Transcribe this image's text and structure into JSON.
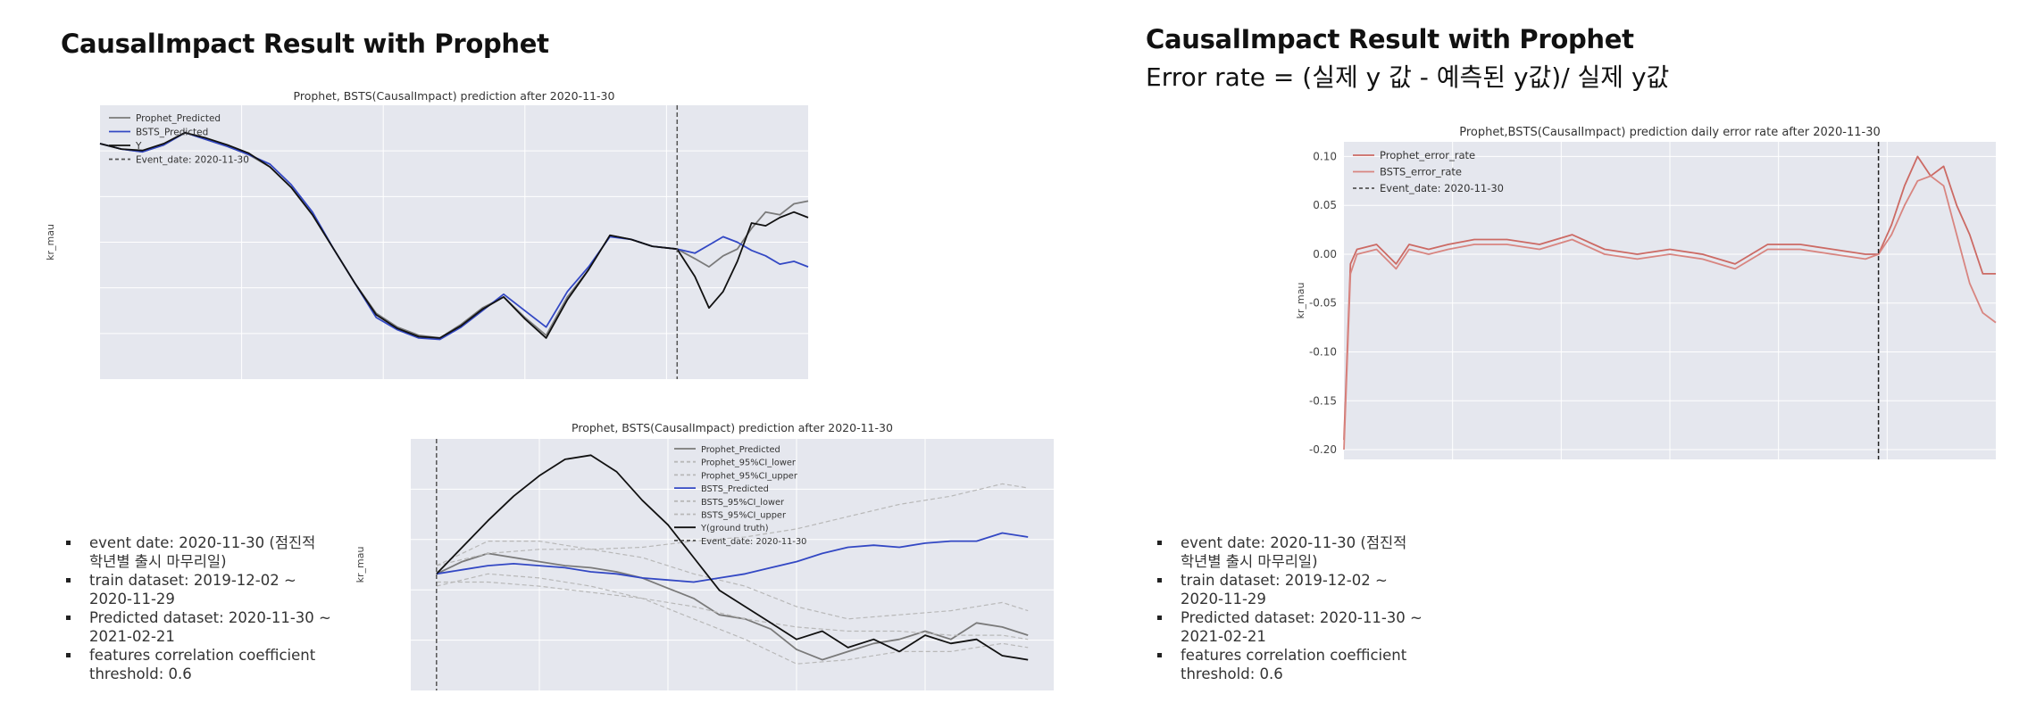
{
  "left": {
    "title": "CausalImpact Result with Prophet",
    "bullets": [
      [
        "event date: 2020-11-30 (점진적",
        "학년별 출시 마무리일)"
      ],
      [
        "train dataset: 2019-12-02 ~",
        "2020-11-29"
      ],
      [
        "Predicted dataset: 2020-11-30 ~",
        "2021-02-21"
      ],
      [
        "features correlation coefficient",
        "threshold: 0.6"
      ]
    ]
  },
  "right": {
    "title": "CausalImpact Result with Prophet",
    "subtitle": "Error rate = (실제 y 값 - 예측된 y값)/ 실제 y값",
    "bullets": [
      [
        "event date: 2020-11-30 (점진적",
        "학년별 출시 마무리일)"
      ],
      [
        "train dataset: 2019-12-02 ~",
        "2020-11-29"
      ],
      [
        "Predicted dataset: 2020-11-30 ~",
        "2021-02-21"
      ],
      [
        "features correlation coefficient",
        "threshold: 0.6"
      ]
    ]
  },
  "colors": {
    "plot_bg": "#e5e7ee",
    "grid": "#ffffff",
    "prophet": "#7a7a7a",
    "bsts": "#3348c4",
    "y": "#111111",
    "ci": "#b8b8b8",
    "error_prophet": "#cc6a64",
    "error_bsts": "#d88580",
    "event": "#555555"
  },
  "chart_data": [
    {
      "id": "chart1",
      "type": "line",
      "title": "Prophet, BSTS(CausalImpact) prediction after 2020-11-30",
      "xlabel": "",
      "ylabel": "kr_mau",
      "event_x": 0.815,
      "legend_position": "top-left",
      "series": [
        {
          "name": "Prophet_Predicted",
          "style": "solid",
          "color_key": "prophet",
          "x": [
            0,
            0.03,
            0.06,
            0.09,
            0.12,
            0.15,
            0.18,
            0.21,
            0.24,
            0.27,
            0.3,
            0.33,
            0.36,
            0.39,
            0.42,
            0.45,
            0.48,
            0.51,
            0.54,
            0.57,
            0.6,
            0.63,
            0.66,
            0.69,
            0.72,
            0.75,
            0.78,
            0.815,
            0.84,
            0.86,
            0.88,
            0.9,
            0.92,
            0.94,
            0.96,
            0.98,
            1.0
          ],
          "y": [
            0.72,
            0.68,
            0.66,
            0.71,
            0.8,
            0.75,
            0.7,
            0.64,
            0.55,
            0.4,
            0.2,
            -0.05,
            -0.3,
            -0.52,
            -0.62,
            -0.68,
            -0.7,
            -0.6,
            -0.48,
            -0.4,
            -0.55,
            -0.68,
            -0.4,
            -0.2,
            0.05,
            0.02,
            -0.03,
            -0.05,
            -0.12,
            -0.18,
            -0.1,
            -0.05,
            0.1,
            0.22,
            0.2,
            0.28,
            0.3
          ]
        },
        {
          "name": "BSTS_Predicted",
          "style": "solid",
          "color_key": "bsts",
          "x": [
            0,
            0.03,
            0.06,
            0.09,
            0.12,
            0.15,
            0.18,
            0.21,
            0.24,
            0.27,
            0.3,
            0.33,
            0.36,
            0.39,
            0.42,
            0.45,
            0.48,
            0.51,
            0.54,
            0.57,
            0.6,
            0.63,
            0.66,
            0.69,
            0.72,
            0.75,
            0.78,
            0.815,
            0.84,
            0.86,
            0.88,
            0.9,
            0.92,
            0.94,
            0.96,
            0.98,
            1.0
          ],
          "y": [
            0.72,
            0.68,
            0.66,
            0.71,
            0.8,
            0.75,
            0.7,
            0.64,
            0.57,
            0.42,
            0.22,
            -0.05,
            -0.3,
            -0.55,
            -0.64,
            -0.7,
            -0.71,
            -0.62,
            -0.5,
            -0.38,
            -0.5,
            -0.62,
            -0.36,
            -0.18,
            0.04,
            0.02,
            -0.03,
            -0.05,
            -0.08,
            -0.02,
            0.04,
            0.0,
            -0.06,
            -0.1,
            -0.16,
            -0.14,
            -0.18
          ]
        },
        {
          "name": "Y",
          "style": "solid",
          "color_key": "y",
          "x": [
            0,
            0.03,
            0.06,
            0.09,
            0.12,
            0.15,
            0.18,
            0.21,
            0.24,
            0.27,
            0.3,
            0.33,
            0.36,
            0.39,
            0.42,
            0.45,
            0.48,
            0.51,
            0.54,
            0.57,
            0.6,
            0.63,
            0.66,
            0.69,
            0.72,
            0.75,
            0.78,
            0.815,
            0.84,
            0.86,
            0.88,
            0.9,
            0.92,
            0.94,
            0.96,
            0.98,
            1.0
          ],
          "y": [
            0.72,
            0.68,
            0.67,
            0.72,
            0.8,
            0.76,
            0.71,
            0.65,
            0.55,
            0.4,
            0.2,
            -0.05,
            -0.3,
            -0.53,
            -0.63,
            -0.69,
            -0.7,
            -0.61,
            -0.49,
            -0.4,
            -0.56,
            -0.7,
            -0.42,
            -0.2,
            0.05,
            0.02,
            -0.03,
            -0.05,
            -0.25,
            -0.48,
            -0.36,
            -0.14,
            0.14,
            0.12,
            0.18,
            0.22,
            0.18
          ]
        },
        {
          "name": "Event_date: 2020-11-30",
          "style": "dashed",
          "color_key": "event"
        }
      ]
    },
    {
      "id": "chart2",
      "type": "line",
      "title": "Prophet, BSTS(CausalImpact) prediction after 2020-11-30",
      "xlabel": "",
      "ylabel": "kr_mau",
      "event_x": 0.04,
      "legend_position": "top-right",
      "series": [
        {
          "name": "Prophet_Predicted",
          "style": "solid",
          "color_key": "prophet",
          "x": [
            0.04,
            0.08,
            0.12,
            0.16,
            0.2,
            0.24,
            0.28,
            0.32,
            0.36,
            0.4,
            0.44,
            0.48,
            0.52,
            0.56,
            0.6,
            0.64,
            0.68,
            0.72,
            0.76,
            0.8,
            0.84,
            0.88,
            0.92,
            0.96
          ],
          "y": [
            0.42,
            0.48,
            0.52,
            0.5,
            0.48,
            0.46,
            0.45,
            0.43,
            0.4,
            0.35,
            0.3,
            0.22,
            0.2,
            0.15,
            0.05,
            0.0,
            0.04,
            0.08,
            0.1,
            0.14,
            0.1,
            0.18,
            0.16,
            0.12
          ]
        },
        {
          "name": "Prophet_95%CI_lower",
          "style": "dashed",
          "color_key": "ci",
          "x": [
            0.04,
            0.12,
            0.2,
            0.28,
            0.36,
            0.44,
            0.52,
            0.6,
            0.68,
            0.76,
            0.84,
            0.92,
            0.96
          ],
          "y": [
            0.36,
            0.42,
            0.4,
            0.36,
            0.3,
            0.2,
            0.1,
            -0.02,
            0.0,
            0.04,
            0.04,
            0.08,
            0.06
          ]
        },
        {
          "name": "Prophet_95%CI_upper",
          "style": "dashed",
          "color_key": "ci",
          "x": [
            0.04,
            0.12,
            0.2,
            0.28,
            0.36,
            0.44,
            0.52,
            0.6,
            0.68,
            0.76,
            0.84,
            0.92,
            0.96
          ],
          "y": [
            0.46,
            0.58,
            0.58,
            0.54,
            0.5,
            0.42,
            0.36,
            0.26,
            0.2,
            0.22,
            0.24,
            0.28,
            0.24
          ]
        },
        {
          "name": "BSTS_Predicted",
          "style": "solid",
          "color_key": "bsts",
          "x": [
            0.04,
            0.08,
            0.12,
            0.16,
            0.2,
            0.24,
            0.28,
            0.32,
            0.36,
            0.4,
            0.44,
            0.48,
            0.52,
            0.56,
            0.6,
            0.64,
            0.68,
            0.72,
            0.76,
            0.8,
            0.84,
            0.88,
            0.92,
            0.96
          ],
          "y": [
            0.42,
            0.44,
            0.46,
            0.47,
            0.46,
            0.45,
            0.43,
            0.42,
            0.4,
            0.39,
            0.38,
            0.4,
            0.42,
            0.45,
            0.48,
            0.52,
            0.55,
            0.56,
            0.55,
            0.57,
            0.58,
            0.58,
            0.62,
            0.6
          ]
        },
        {
          "name": "BSTS_95%CI_lower",
          "style": "dashed",
          "color_key": "ci",
          "x": [
            0.04,
            0.12,
            0.2,
            0.28,
            0.36,
            0.44,
            0.52,
            0.6,
            0.68,
            0.76,
            0.84,
            0.92,
            0.96
          ],
          "y": [
            0.38,
            0.38,
            0.36,
            0.33,
            0.3,
            0.26,
            0.2,
            0.16,
            0.14,
            0.14,
            0.12,
            0.12,
            0.1
          ]
        },
        {
          "name": "BSTS_95%CI_upper",
          "style": "dashed",
          "color_key": "ci",
          "x": [
            0.04,
            0.12,
            0.2,
            0.28,
            0.36,
            0.44,
            0.52,
            0.6,
            0.68,
            0.76,
            0.84,
            0.92,
            0.96
          ],
          "y": [
            0.46,
            0.52,
            0.54,
            0.54,
            0.55,
            0.58,
            0.6,
            0.64,
            0.7,
            0.76,
            0.8,
            0.86,
            0.84
          ]
        },
        {
          "name": "Y(ground truth)",
          "style": "solid",
          "color_key": "y",
          "x": [
            0.04,
            0.08,
            0.12,
            0.16,
            0.2,
            0.24,
            0.28,
            0.32,
            0.36,
            0.4,
            0.44,
            0.48,
            0.52,
            0.56,
            0.6,
            0.64,
            0.68,
            0.72,
            0.76,
            0.8,
            0.84,
            0.88,
            0.92,
            0.96
          ],
          "y": [
            0.42,
            0.55,
            0.68,
            0.8,
            0.9,
            0.98,
            1.0,
            0.92,
            0.78,
            0.66,
            0.5,
            0.34,
            0.26,
            0.18,
            0.1,
            0.14,
            0.06,
            0.1,
            0.04,
            0.12,
            0.08,
            0.1,
            0.02,
            0.0
          ]
        },
        {
          "name": "Event_date: 2020-11-30",
          "style": "dashed",
          "color_key": "event"
        }
      ]
    },
    {
      "id": "chart3",
      "type": "line",
      "title": "Prophet,BSTS(CausalImpact) prediction daily error rate after 2020-11-30",
      "xlabel": "",
      "ylabel": "kr_mau",
      "ylim": [
        -0.21,
        0.115
      ],
      "yticks": [
        "0.10",
        "0.05",
        "0.00",
        "-0.05",
        "-0.10",
        "-0.15",
        "-0.20"
      ],
      "event_x": 0.82,
      "legend_position": "top-left",
      "series": [
        {
          "name": "Prophet_error_rate",
          "style": "solid",
          "color_key": "error_prophet",
          "x": [
            0,
            0.01,
            0.02,
            0.05,
            0.08,
            0.1,
            0.13,
            0.16,
            0.2,
            0.25,
            0.3,
            0.35,
            0.4,
            0.45,
            0.5,
            0.55,
            0.6,
            0.65,
            0.7,
            0.75,
            0.8,
            0.82,
            0.84,
            0.86,
            0.88,
            0.9,
            0.92,
            0.94,
            0.96,
            0.98,
            1.0
          ],
          "y": [
            -0.19,
            -0.01,
            0.005,
            0.01,
            -0.01,
            0.01,
            0.005,
            0.01,
            0.015,
            0.015,
            0.01,
            0.02,
            0.005,
            0.0,
            0.005,
            0.0,
            -0.01,
            0.01,
            0.01,
            0.005,
            0.0,
            0.0,
            0.03,
            0.07,
            0.1,
            0.08,
            0.09,
            0.05,
            0.02,
            -0.02,
            -0.02
          ]
        },
        {
          "name": "BSTS_error_rate",
          "style": "solid",
          "color_key": "error_bsts",
          "x": [
            0,
            0.01,
            0.02,
            0.05,
            0.08,
            0.1,
            0.13,
            0.16,
            0.2,
            0.25,
            0.3,
            0.35,
            0.4,
            0.45,
            0.5,
            0.55,
            0.6,
            0.65,
            0.7,
            0.75,
            0.8,
            0.82,
            0.84,
            0.86,
            0.88,
            0.9,
            0.92,
            0.94,
            0.96,
            0.98,
            1.0
          ],
          "y": [
            -0.2,
            -0.02,
            0.0,
            0.005,
            -0.015,
            0.005,
            0.0,
            0.005,
            0.01,
            0.01,
            0.005,
            0.015,
            0.0,
            -0.005,
            0.0,
            -0.005,
            -0.015,
            0.005,
            0.005,
            0.0,
            -0.005,
            0.0,
            0.02,
            0.05,
            0.075,
            0.08,
            0.07,
            0.02,
            -0.03,
            -0.06,
            -0.07
          ]
        },
        {
          "name": "Event_date: 2020-11-30",
          "style": "dashed",
          "color_key": "event"
        }
      ]
    }
  ]
}
